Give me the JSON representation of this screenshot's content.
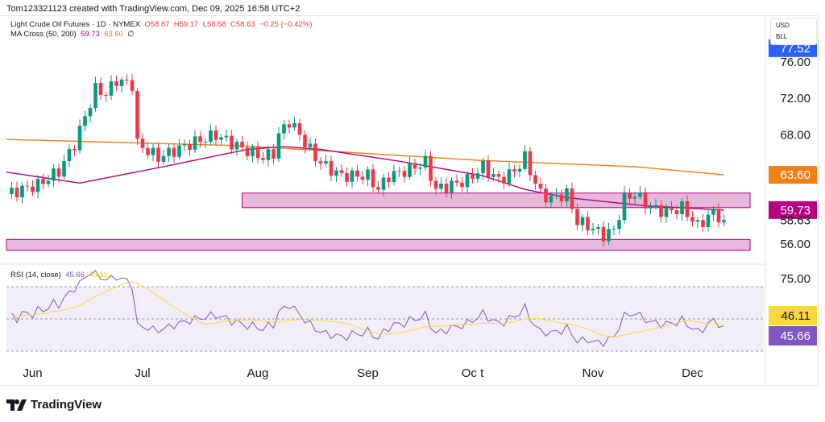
{
  "credit": "Tom123321123 created with TradingView.com, Dec 09, 2025 16:58 UTC+2",
  "legend": {
    "symbol": "Light Crude Oil Futures · 1D · NYMEX",
    "o": "O58.87",
    "h": "H59.17",
    "l": "L58.58",
    "c": "C58.63",
    "chg": "−0.25 (−0.42%)",
    "ma_label": "MA Cross (50, 200)",
    "ma50": "59.73",
    "ma200": "63.60",
    "ma_icon": "∅"
  },
  "rsi_legend": {
    "label": "RSI (14, close)",
    "rsi": "45.66",
    "ma": "46.11"
  },
  "unit": {
    "currency": "USD",
    "unit": "BLL"
  },
  "logo": "TradingView",
  "colors": {
    "up": "#089981",
    "down": "#f23645",
    "ma50": "#b5007f",
    "ma200": "#f57f17",
    "rsi": "#7e57c2",
    "rsi_ma": "#fdd835",
    "zone": "#e7b8db",
    "zone_border": "#b5007f"
  },
  "chart_data": {
    "type": "candlestick",
    "title": "Light Crude Oil Futures · 1D · NYMEX",
    "price_ticks": [
      "76.00",
      "72.00",
      "68.00",
      "56.00"
    ],
    "price_badges": [
      {
        "label": "77.52",
        "color": "#2962ff"
      },
      {
        "label": "63.60",
        "color": "#f57f17"
      },
      {
        "label": "59.73",
        "color": "#b5007f"
      },
      {
        "label": "58.63",
        "color": "none"
      }
    ],
    "rsi_ticks": [
      "75.00"
    ],
    "rsi_badges": [
      {
        "label": "46.11",
        "color": "#fdd835"
      },
      {
        "label": "45.66",
        "color": "#7e57c2"
      }
    ],
    "x_ticks": [
      {
        "label": "Jun",
        "bar": 5
      },
      {
        "label": "Jul",
        "bar": 26
      },
      {
        "label": "Aug",
        "bar": 48
      },
      {
        "label": "Sep",
        "bar": 69
      },
      {
        "label": "Oc t",
        "bar": 89
      },
      {
        "label": "Nov",
        "bar": 112
      },
      {
        "label": "Dec",
        "bar": 131
      }
    ],
    "ylim": [
      54.5,
      78.5
    ],
    "bars": 137,
    "close_keypoints": [
      [
        0,
        61.5
      ],
      [
        6,
        62.5
      ],
      [
        10,
        64
      ],
      [
        13,
        67
      ],
      [
        15,
        70
      ],
      [
        17,
        73
      ],
      [
        19,
        72.5
      ],
      [
        21,
        74
      ],
      [
        24,
        73.5
      ],
      [
        25,
        67
      ],
      [
        29,
        65.5
      ],
      [
        35,
        67
      ],
      [
        40,
        68
      ],
      [
        45,
        66.5
      ],
      [
        49,
        65.5
      ],
      [
        51,
        66
      ],
      [
        52,
        68
      ],
      [
        54,
        69.5
      ],
      [
        56,
        68
      ],
      [
        59,
        65.5
      ],
      [
        61,
        64.5
      ],
      [
        64,
        63.5
      ],
      [
        69,
        63.5
      ],
      [
        71,
        62
      ],
      [
        73,
        63.5
      ],
      [
        76,
        64
      ],
      [
        80,
        65
      ],
      [
        82,
        62
      ],
      [
        85,
        62.5
      ],
      [
        88,
        63
      ],
      [
        91,
        64.5
      ],
      [
        94,
        63
      ],
      [
        97,
        64
      ],
      [
        99,
        65.5
      ],
      [
        100,
        64
      ],
      [
        102,
        61.5
      ],
      [
        104,
        61
      ],
      [
        107,
        61.5
      ],
      [
        109,
        58.5
      ],
      [
        111,
        58
      ],
      [
        114,
        57
      ],
      [
        116,
        57.5
      ],
      [
        118,
        61
      ],
      [
        120,
        61.5
      ],
      [
        123,
        60
      ],
      [
        126,
        59.5
      ],
      [
        129,
        60
      ],
      [
        132,
        58
      ],
      [
        135,
        59.5
      ],
      [
        137,
        58.63
      ]
    ],
    "ma200_keypoints": [
      [
        0,
        67.5
      ],
      [
        45,
        66.8
      ],
      [
        90,
        65.2
      ],
      [
        120,
        64.5
      ],
      [
        137,
        63.6
      ]
    ],
    "ma50_keypoints": [
      [
        0,
        63.9
      ],
      [
        14,
        62.7
      ],
      [
        30,
        64.5
      ],
      [
        46,
        66.4
      ],
      [
        53,
        66.7
      ],
      [
        60,
        66.4
      ],
      [
        75,
        65.1
      ],
      [
        91,
        63.5
      ],
      [
        99,
        62
      ],
      [
        107,
        61.1
      ],
      [
        122,
        60.2
      ],
      [
        137,
        59.73
      ]
    ],
    "zones": [
      {
        "from_bar": 45,
        "to": "right",
        "low": 60.0,
        "high": 61.6
      },
      {
        "from_bar": 0,
        "to": "right",
        "low": 55.3,
        "high": 56.5
      }
    ],
    "rsi_levels": [
      70,
      50,
      30
    ],
    "rsi_last": 45.66,
    "rsi_ma_last": 46.11
  }
}
